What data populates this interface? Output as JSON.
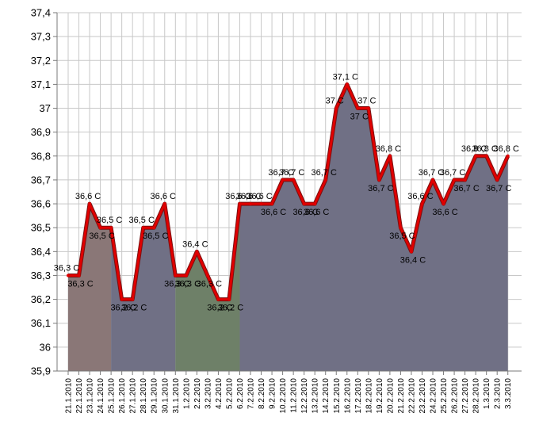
{
  "chart_data": {
    "type": "area",
    "title": "",
    "xlabel": "",
    "ylabel": "",
    "ylim": [
      35.9,
      37.4
    ],
    "ytick_step": 0.1,
    "grid": true,
    "categories": [
      "21.1.2010",
      "22.1.2010",
      "23.1.2010",
      "24.1.2010",
      "25.1.2010",
      "26.1.2010",
      "27.1.2010",
      "28.1.2010",
      "29.1.2010",
      "30.1.2010",
      "31.1.2010",
      "1.2.2010",
      "2.2.2010",
      "3.2.2010",
      "4.2.2010",
      "5.2.2010",
      "6.2.2010",
      "7.2.2010",
      "8.2.2010",
      "9.2.2010",
      "10.2.2010",
      "11.2.2010",
      "12.2.2010",
      "13.2.2010",
      "14.2.2010",
      "15.2.2010",
      "16.2.2010",
      "17.2.2010",
      "18.2.2010",
      "19.2.2010",
      "20.2.2010",
      "21.2.2010",
      "22.2.2010",
      "23.2.2010",
      "24.2.2010",
      "25.2.2010",
      "26.2.2010",
      "27.2.2010",
      "28.2.2010",
      "1.3.2010",
      "2.3.2010",
      "3.3.2010"
    ],
    "yticks": [
      "35,9",
      "36",
      "36,1",
      "36,2",
      "36,3",
      "36,4",
      "36,5",
      "36,6",
      "36,7",
      "36,8",
      "36,9",
      "37",
      "37,1",
      "37,2",
      "37,3",
      "37,4"
    ],
    "series": [
      {
        "values": [
          36.3,
          36.3,
          36.6,
          36.5,
          36.5,
          36.2,
          36.2,
          36.5,
          36.5,
          36.6,
          36.3,
          36.3,
          36.4,
          36.3,
          36.2,
          36.2,
          36.6,
          36.6,
          36.6,
          36.6,
          36.7,
          36.7,
          36.6,
          36.6,
          36.7,
          37.0,
          37.1,
          37.0,
          37.0,
          36.7,
          36.8,
          36.5,
          36.4,
          36.6,
          36.7,
          36.6,
          36.7,
          36.7,
          36.8,
          36.8,
          36.7,
          36.8
        ],
        "labels": [
          "36,3 C",
          "36,3 C",
          "36,6 C",
          "36,5 C",
          "36,5 C",
          "36,2 C",
          "36,2 C",
          "36,5 C",
          "36,5 C",
          "36,6 C",
          "36,3 C",
          "36,3 C",
          "36,4 C",
          "36,3 C",
          "36,2 C",
          "36,2 C",
          "36,6 C",
          "36,6 C",
          "36,6 C",
          "36,6 C",
          "36,7 C",
          "36,7 C",
          "36,6 C",
          "36,6 C",
          "36,7 C",
          "37 C",
          "37,1 C",
          "37 C",
          "37 C",
          "36,7 C",
          "36,8 C",
          "36,5 C",
          "36,4 C",
          "36,6 C",
          "36,7 C",
          "36,6 C",
          "36,7 C",
          "36,7 C",
          "36,8 C",
          "36,8 C",
          "36,7 C",
          "36,8 C"
        ],
        "line_color": "#e00000"
      }
    ],
    "segments": [
      {
        "from": 0,
        "to": 4,
        "color": "#8a7777"
      },
      {
        "from": 4,
        "to": 10,
        "color": "#707085"
      },
      {
        "from": 10,
        "to": 16,
        "color": "#6e8068"
      },
      {
        "from": 16,
        "to": 41,
        "color": "#707085"
      }
    ]
  }
}
